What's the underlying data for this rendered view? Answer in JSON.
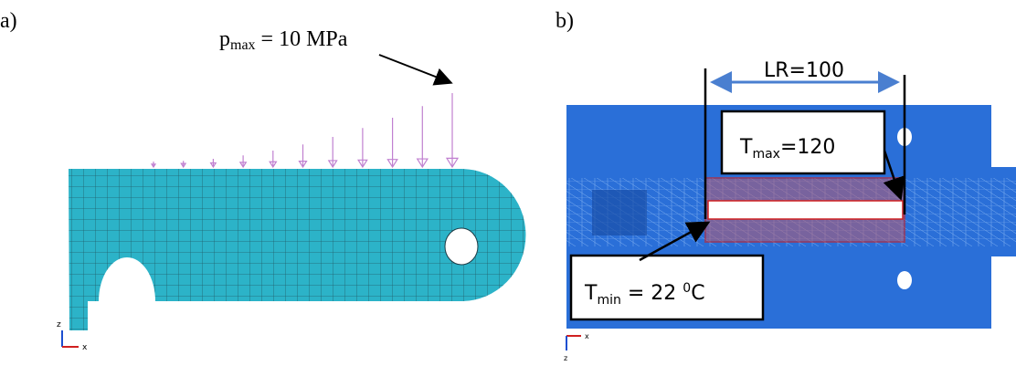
{
  "panels": [
    {
      "label": "a)",
      "load": {
        "symbol": "p",
        "subscript": "max",
        "text": " = 10 MPa"
      },
      "axes": {
        "vertical": "z",
        "horizontal": "x"
      }
    },
    {
      "label": "b)",
      "dimension": "LR=100",
      "max_label": {
        "symbol": "T",
        "subscript": "max",
        "text": "=120"
      },
      "min_label": {
        "symbol": "T",
        "subscript": "min",
        "text": " = 22 ",
        "superscript": "0",
        "unit": "C"
      },
      "axes": {
        "vertical": "z",
        "horizontal": "x"
      }
    }
  ]
}
